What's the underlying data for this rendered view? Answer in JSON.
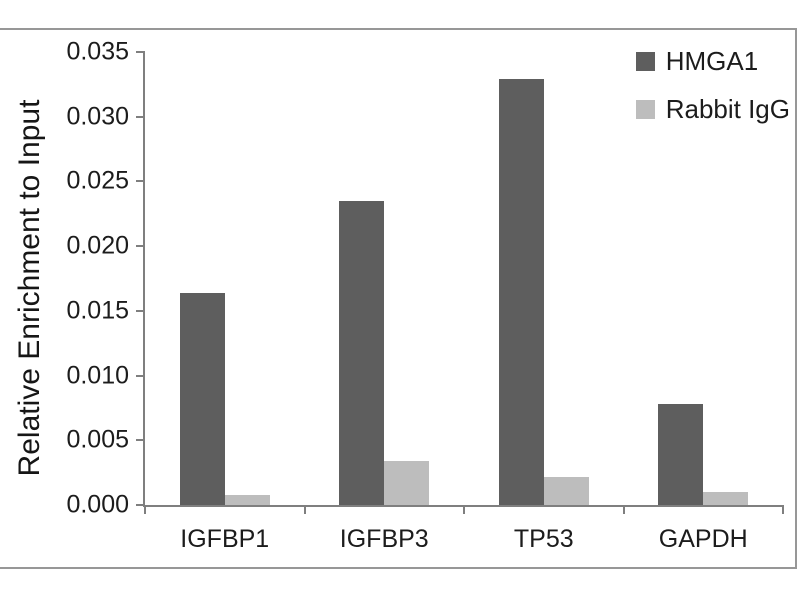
{
  "figure": {
    "background": "#ffffff",
    "frame_color": "#979797",
    "axis_color": "#7f7f7f",
    "text_color": "#1c1c1c"
  },
  "chart_data": {
    "type": "bar",
    "title": "",
    "xlabel": "",
    "ylabel": "Relative Enrichment to Input",
    "categories": [
      "IGFBP1",
      "IGFBP3",
      "TP53",
      "GAPDH"
    ],
    "series": [
      {
        "name": "HMGA1",
        "color": "#5e5e5e",
        "values": [
          0.0164,
          0.0235,
          0.0329,
          0.0078
        ]
      },
      {
        "name": "Rabbit IgG",
        "color": "#bdbdbd",
        "values": [
          0.0008,
          0.0034,
          0.0022,
          0.001
        ]
      }
    ],
    "ylim": [
      0,
      0.035
    ],
    "ytick_step": 0.005,
    "yticks": [
      "0.000",
      "0.005",
      "0.010",
      "0.015",
      "0.020",
      "0.025",
      "0.030",
      "0.035"
    ],
    "grid": false,
    "legend_position": "top-right"
  }
}
